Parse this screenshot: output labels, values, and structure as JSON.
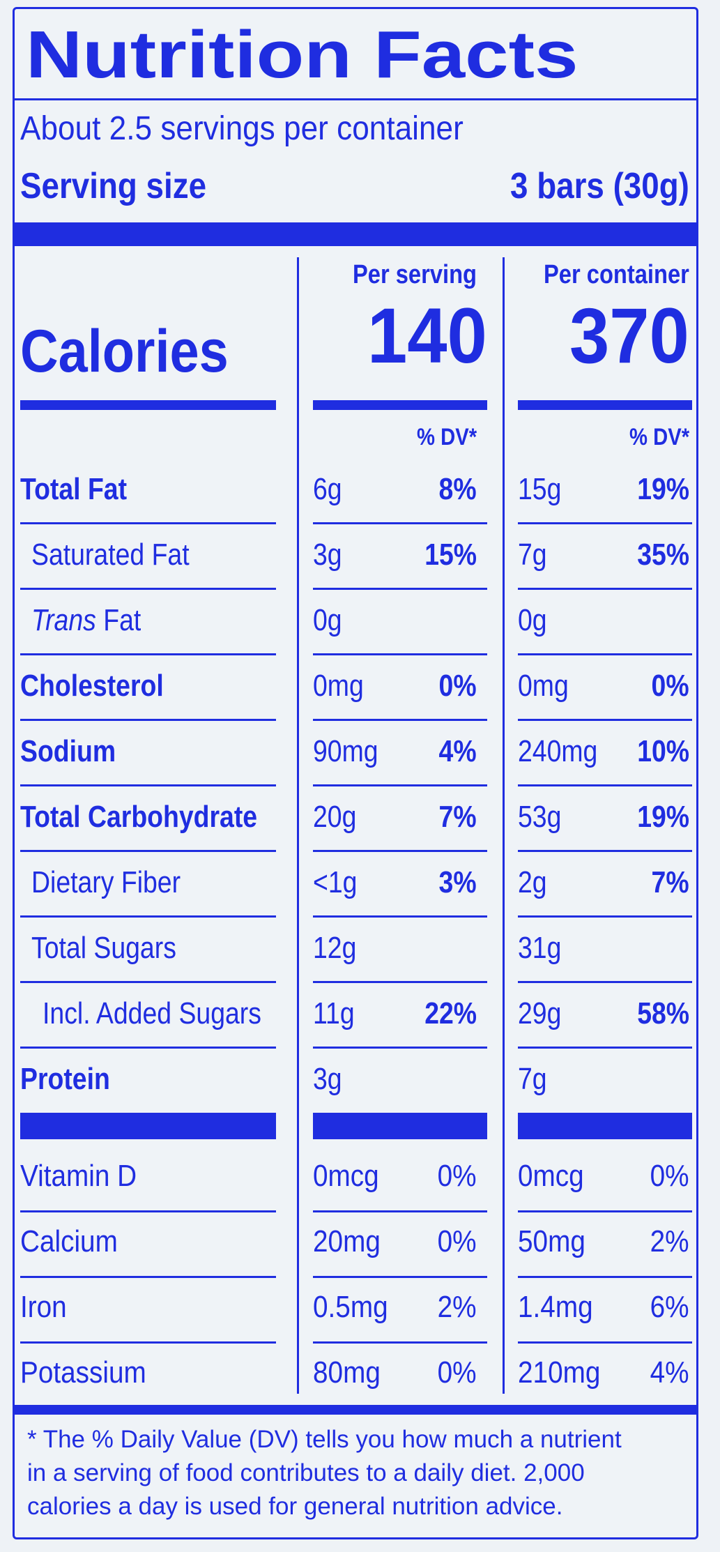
{
  "title": "Nutrition Facts",
  "servings_per_container": "About 2.5 servings per container",
  "serving_size": {
    "label": "Serving size",
    "value": "3 bars (30g)"
  },
  "calories": {
    "label": "Calories",
    "per_serving_header": "Per serving",
    "per_container_header": "Per container",
    "per_serving": "140",
    "per_container": "370"
  },
  "dv_header": "% DV*",
  "nutrients": [
    {
      "name": "Total Fat",
      "bold": true,
      "indent": 0,
      "serving_amount": "6g",
      "serving_dv": "8%",
      "container_amount": "15g",
      "container_dv": "19%"
    },
    {
      "name": "Saturated Fat",
      "bold": false,
      "indent": 1,
      "serving_amount": "3g",
      "serving_dv": "15%",
      "container_amount": "7g",
      "container_dv": "35%"
    },
    {
      "name": "Fat",
      "italic_prefix": "Trans",
      "bold": false,
      "indent": 1,
      "serving_amount": "0g",
      "serving_dv": "",
      "container_amount": "0g",
      "container_dv": ""
    },
    {
      "name": "Cholesterol",
      "bold": true,
      "indent": 0,
      "serving_amount": "0mg",
      "serving_dv": "0%",
      "container_amount": "0mg",
      "container_dv": "0%"
    },
    {
      "name": "Sodium",
      "bold": true,
      "indent": 0,
      "serving_amount": "90mg",
      "serving_dv": "4%",
      "container_amount": "240mg",
      "container_dv": "10%"
    },
    {
      "name": "Total Carbohydrate",
      "bold": true,
      "indent": 0,
      "serving_amount": "20g",
      "serving_dv": "7%",
      "container_amount": "53g",
      "container_dv": "19%"
    },
    {
      "name": "Dietary Fiber",
      "bold": false,
      "indent": 1,
      "serving_amount": "<1g",
      "serving_dv": "3%",
      "container_amount": "2g",
      "container_dv": "7%"
    },
    {
      "name": "Total Sugars",
      "bold": false,
      "indent": 1,
      "serving_amount": "12g",
      "serving_dv": "",
      "container_amount": "31g",
      "container_dv": ""
    },
    {
      "name": "Incl. Added Sugars",
      "bold": false,
      "indent": 2,
      "serving_amount": "11g",
      "serving_dv": "22%",
      "container_amount": "29g",
      "container_dv": "58%"
    },
    {
      "name": "Protein",
      "bold": true,
      "indent": 0,
      "serving_amount": "3g",
      "serving_dv": "",
      "container_amount": "7g",
      "container_dv": ""
    }
  ],
  "vitamins": [
    {
      "name": "Vitamin D",
      "serving_amount": "0mcg",
      "serving_dv": "0%",
      "container_amount": "0mcg",
      "container_dv": "0%"
    },
    {
      "name": "Calcium",
      "serving_amount": "20mg",
      "serving_dv": "0%",
      "container_amount": "50mg",
      "container_dv": "2%"
    },
    {
      "name": "Iron",
      "serving_amount": "0.5mg",
      "serving_dv": "2%",
      "container_amount": "1.4mg",
      "container_dv": "6%"
    },
    {
      "name": "Potassium",
      "serving_amount": "80mg",
      "serving_dv": "0%",
      "container_amount": "210mg",
      "container_dv": "4%"
    }
  ],
  "footnote": [
    "* The % Daily Value (DV) tells you how much a nutrient",
    "in a serving of food contributes to a daily diet. 2,000",
    "calories a day is used for general nutrition advice."
  ],
  "colors": {
    "ink": "#1f2de0",
    "background": "#eff3f7"
  }
}
